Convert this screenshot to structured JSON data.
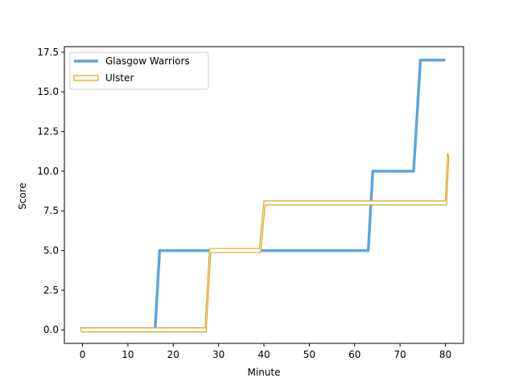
{
  "chart_data": {
    "type": "line",
    "title": "",
    "xlabel": "Minute",
    "ylabel": "Score",
    "xlim": [
      -4,
      84
    ],
    "ylim": [
      -0.85,
      17.85
    ],
    "xticks": [
      0,
      10,
      20,
      30,
      40,
      50,
      60,
      70,
      80
    ],
    "xtick_labels": [
      "0",
      "10",
      "20",
      "30",
      "40",
      "50",
      "60",
      "70",
      "80"
    ],
    "yticks": [
      0,
      2.5,
      5,
      7.5,
      10,
      12.5,
      15,
      17.5
    ],
    "ytick_labels": [
      "0.0",
      "2.5",
      "5.0",
      "7.5",
      "10.0",
      "12.5",
      "15.0",
      "17.5"
    ],
    "grid": false,
    "legend_position": "upper-left",
    "series": [
      {
        "name": "Glasgow Warriors",
        "style": "line",
        "color": "#5DA5DA",
        "x": [
          16,
          17,
          63,
          64,
          73,
          74.5,
          80
        ],
        "y": [
          0,
          5,
          5,
          10,
          10,
          17,
          17
        ]
      },
      {
        "name": "Ulster",
        "style": "band",
        "color": "#DAA520",
        "x": [
          -0.5,
          27,
          28,
          39,
          40,
          79.5,
          80,
          80.5
        ],
        "y": [
          0,
          0,
          5,
          5,
          8,
          8,
          8,
          11
        ]
      }
    ]
  }
}
